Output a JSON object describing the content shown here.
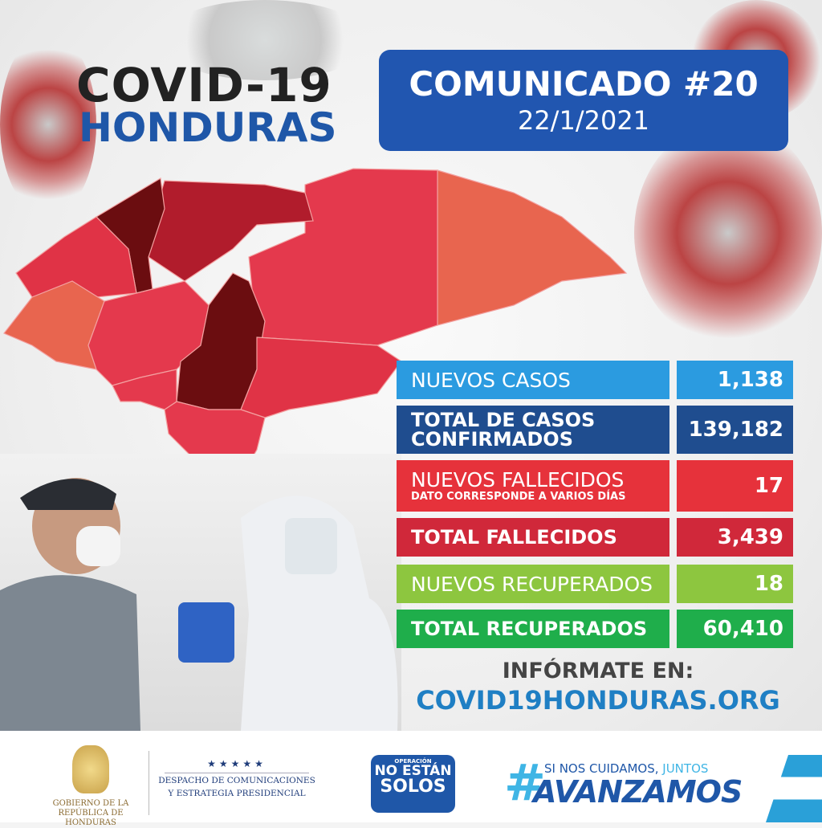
{
  "header": {
    "title_line1": "COVID-19",
    "title_line2": "HONDURAS"
  },
  "communique": {
    "title": "COMUNICADO #20",
    "date": "22/1/2021",
    "color": "#2156b0"
  },
  "stats": [
    {
      "label": "NUEVOS CASOS",
      "value": "1,138",
      "color": "#2b9be0"
    },
    {
      "label": "TOTAL DE CASOS CONFIRMADOS",
      "value": "139,182",
      "color": "#1f4d8f"
    },
    {
      "label": "NUEVOS FALLECIDOS",
      "note": "DATO CORRESPONDE A VARIOS DÍAS",
      "value": "17",
      "color": "#e6323b"
    },
    {
      "label": "TOTAL FALLECIDOS",
      "value": "3,439",
      "color": "#d0283a"
    },
    {
      "label": "NUEVOS RECUPERADOS",
      "value": "18",
      "color": "#8dc63f"
    },
    {
      "label": "TOTAL RECUPERADOS",
      "value": "60,410",
      "color": "#1fae4b"
    }
  ],
  "info": {
    "line1": "INFÓRMATE EN:",
    "url": "COVID19HONDURAS.ORG"
  },
  "footer": {
    "gobierno": "GOBIERNO DE LA REPÚBLICA DE HONDURAS",
    "despacho_line1": "DESPACHO DE COMUNICACIONES",
    "despacho_line2": "Y ESTRATEGIA PRESIDENCIAL",
    "stars": "★★★★★",
    "solos_top": "OPERACIÓN",
    "solos_mid": "NO ESTÁN",
    "solos_bottom": "SOLOS",
    "hashtag_symbol": "#",
    "hashtag_small": "SI NOS CUIDAMOS,",
    "hashtag_small_accent": "JUNTOS",
    "hashtag_big": "AVANZAMOS"
  },
  "map_colors": {
    "darkest": "#6b0d10",
    "dark": "#b11c2c",
    "medium": "#e03346",
    "light": "#e4394d",
    "orange": "#e8654f"
  }
}
